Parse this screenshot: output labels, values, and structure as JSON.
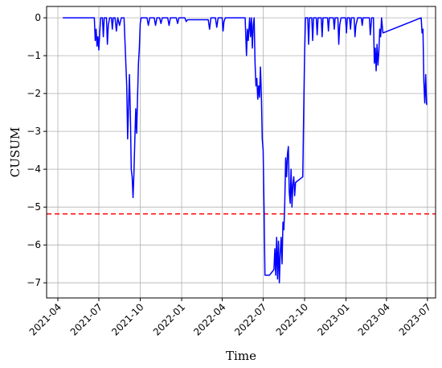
{
  "chart_data": {
    "type": "line",
    "title": "",
    "xlabel": "Time",
    "ylabel": "CUSUM",
    "x_ticks": [
      "2021-04",
      "2021-07",
      "2021-10",
      "2022-01",
      "2022-04",
      "2022-07",
      "2022-10",
      "2023-01",
      "2023-04",
      "2023-07"
    ],
    "y_ticks": [
      0,
      -1,
      -2,
      -3,
      -4,
      -5,
      -6,
      -7
    ],
    "xlim": [
      "2021-03-07",
      "2023-07-19"
    ],
    "ylim": [
      -7.4,
      0.3
    ],
    "grid": true,
    "threshold": {
      "value": -5.18,
      "color": "#ff0000",
      "style": "dashed"
    },
    "series": [
      {
        "color": "#0000ff",
        "points": [
          [
            "2021-04-12",
            0
          ],
          [
            "2021-06-21",
            0
          ],
          [
            "2021-06-23",
            -0.6
          ],
          [
            "2021-06-25",
            -0.3
          ],
          [
            "2021-06-27",
            -0.75
          ],
          [
            "2021-06-29",
            -0.5
          ],
          [
            "2021-07-01",
            -0.85
          ],
          [
            "2021-07-03",
            -0.4
          ],
          [
            "2021-07-05",
            0
          ],
          [
            "2021-07-09",
            0
          ],
          [
            "2021-07-11",
            -0.5
          ],
          [
            "2021-07-13",
            0
          ],
          [
            "2021-07-18",
            0
          ],
          [
            "2021-07-20",
            -0.7
          ],
          [
            "2021-07-22",
            -0.2
          ],
          [
            "2021-07-25",
            0
          ],
          [
            "2021-07-29",
            0
          ],
          [
            "2021-07-31",
            -0.3
          ],
          [
            "2021-08-02",
            0
          ],
          [
            "2021-08-06",
            0
          ],
          [
            "2021-08-09",
            -0.35
          ],
          [
            "2021-08-12",
            0
          ],
          [
            "2021-08-16",
            -0.2
          ],
          [
            "2021-08-20",
            0
          ],
          [
            "2021-08-26",
            0
          ],
          [
            "2021-08-29",
            -0.9
          ],
          [
            "2021-09-01",
            -1.8
          ],
          [
            "2021-09-03",
            -3.2
          ],
          [
            "2021-09-05",
            -2.4
          ],
          [
            "2021-09-07",
            -1.5
          ],
          [
            "2021-09-09",
            -2.5
          ],
          [
            "2021-09-11",
            -4.0
          ],
          [
            "2021-09-13",
            -4.2
          ],
          [
            "2021-09-15",
            -4.75
          ],
          [
            "2021-09-17",
            -4.1
          ],
          [
            "2021-09-19",
            -3.2
          ],
          [
            "2021-09-21",
            -2.4
          ],
          [
            "2021-09-23",
            -3.05
          ],
          [
            "2021-09-25",
            -2.1
          ],
          [
            "2021-09-27",
            -1.2
          ],
          [
            "2021-09-29",
            -0.8
          ],
          [
            "2021-10-01",
            -0.15
          ],
          [
            "2021-10-03",
            0
          ],
          [
            "2021-10-16",
            0
          ],
          [
            "2021-10-19",
            -0.2
          ],
          [
            "2021-10-22",
            0
          ],
          [
            "2021-11-01",
            0
          ],
          [
            "2021-11-04",
            -0.2
          ],
          [
            "2021-11-07",
            0
          ],
          [
            "2021-11-13",
            0
          ],
          [
            "2021-11-16",
            -0.15
          ],
          [
            "2021-11-19",
            0
          ],
          [
            "2021-12-01",
            0
          ],
          [
            "2021-12-04",
            -0.2
          ],
          [
            "2021-12-07",
            0
          ],
          [
            "2021-12-20",
            0
          ],
          [
            "2021-12-23",
            -0.15
          ],
          [
            "2021-12-26",
            0
          ],
          [
            "2022-01-08",
            0
          ],
          [
            "2022-01-11",
            -0.1
          ],
          [
            "2022-01-14",
            -0.05
          ],
          [
            "2022-03-01",
            -0.05
          ],
          [
            "2022-03-04",
            -0.3
          ],
          [
            "2022-03-07",
            0
          ],
          [
            "2022-03-17",
            0
          ],
          [
            "2022-03-20",
            -0.25
          ],
          [
            "2022-03-23",
            0
          ],
          [
            "2022-04-01",
            0
          ],
          [
            "2022-04-03",
            -0.35
          ],
          [
            "2022-04-05",
            -0.1
          ],
          [
            "2022-04-08",
            0
          ],
          [
            "2022-05-22",
            0
          ],
          [
            "2022-05-25",
            -1.0
          ],
          [
            "2022-05-27",
            -0.3
          ],
          [
            "2022-05-29",
            -0.6
          ],
          [
            "2022-06-01",
            0
          ],
          [
            "2022-06-03",
            -0.5
          ],
          [
            "2022-06-05",
            0
          ],
          [
            "2022-06-07",
            -0.8
          ],
          [
            "2022-06-09",
            -0.2
          ],
          [
            "2022-06-11",
            0
          ],
          [
            "2022-06-13",
            -1.2
          ],
          [
            "2022-06-15",
            -1.8
          ],
          [
            "2022-06-17",
            -1.6
          ],
          [
            "2022-06-19",
            -2.15
          ],
          [
            "2022-06-21",
            -1.8
          ],
          [
            "2022-06-23",
            -2.1
          ],
          [
            "2022-06-25",
            -1.3
          ],
          [
            "2022-06-27",
            -2.0
          ],
          [
            "2022-06-29",
            -3.2
          ],
          [
            "2022-07-01",
            -3.5
          ],
          [
            "2022-07-03",
            -5.0
          ],
          [
            "2022-07-05",
            -6.8
          ],
          [
            "2022-07-15",
            -6.8
          ],
          [
            "2022-07-25",
            -6.65
          ],
          [
            "2022-07-27",
            -6.1
          ],
          [
            "2022-07-29",
            -6.8
          ],
          [
            "2022-07-31",
            -5.8
          ],
          [
            "2022-08-02",
            -6.9
          ],
          [
            "2022-08-04",
            -5.9
          ],
          [
            "2022-08-06",
            -7.0
          ],
          [
            "2022-08-08",
            -6.2
          ],
          [
            "2022-08-10",
            -5.8
          ],
          [
            "2022-08-12",
            -6.5
          ],
          [
            "2022-08-14",
            -5.4
          ],
          [
            "2022-08-16",
            -5.6
          ],
          [
            "2022-08-18",
            -4.9
          ],
          [
            "2022-08-20",
            -3.7
          ],
          [
            "2022-08-22",
            -4.2
          ],
          [
            "2022-08-24",
            -3.6
          ],
          [
            "2022-08-26",
            -3.4
          ],
          [
            "2022-08-28",
            -4.6
          ],
          [
            "2022-08-30",
            -4.9
          ],
          [
            "2022-09-01",
            -4.0
          ],
          [
            "2022-09-03",
            -5.0
          ],
          [
            "2022-09-05",
            -4.4
          ],
          [
            "2022-09-07",
            -4.2
          ],
          [
            "2022-09-09",
            -4.7
          ],
          [
            "2022-09-11",
            -4.35
          ],
          [
            "2022-09-27",
            -4.2
          ],
          [
            "2022-09-29",
            -2.5
          ],
          [
            "2022-10-01",
            -1.0
          ],
          [
            "2022-10-03",
            0
          ],
          [
            "2022-10-08",
            0
          ],
          [
            "2022-10-10",
            -0.7
          ],
          [
            "2022-10-12",
            0
          ],
          [
            "2022-10-17",
            0
          ],
          [
            "2022-10-19",
            -0.6
          ],
          [
            "2022-10-21",
            0
          ],
          [
            "2022-10-27",
            0
          ],
          [
            "2022-10-29",
            -0.45
          ],
          [
            "2022-10-31",
            0
          ],
          [
            "2022-11-07",
            0
          ],
          [
            "2022-11-09",
            -0.5
          ],
          [
            "2022-11-11",
            0
          ],
          [
            "2022-11-21",
            0
          ],
          [
            "2022-11-23",
            -0.35
          ],
          [
            "2022-11-25",
            0
          ],
          [
            "2022-12-04",
            0
          ],
          [
            "2022-12-06",
            -0.3
          ],
          [
            "2022-12-08",
            0
          ],
          [
            "2022-12-14",
            0
          ],
          [
            "2022-12-16",
            -0.7
          ],
          [
            "2022-12-18",
            -0.2
          ],
          [
            "2022-12-21",
            0
          ],
          [
            "2022-12-31",
            0
          ],
          [
            "2023-01-02",
            -0.4
          ],
          [
            "2023-01-04",
            0
          ],
          [
            "2023-01-09",
            0
          ],
          [
            "2023-01-11",
            -0.3
          ],
          [
            "2023-01-13",
            0
          ],
          [
            "2023-01-19",
            0
          ],
          [
            "2023-01-21",
            -0.5
          ],
          [
            "2023-01-23",
            -0.2
          ],
          [
            "2023-01-27",
            0
          ],
          [
            "2023-02-04",
            0
          ],
          [
            "2023-02-06",
            -0.2
          ],
          [
            "2023-02-08",
            0
          ],
          [
            "2023-02-22",
            0
          ],
          [
            "2023-02-24",
            -0.45
          ],
          [
            "2023-02-27",
            0
          ],
          [
            "2023-03-03",
            0
          ],
          [
            "2023-03-05",
            -1.2
          ],
          [
            "2023-03-07",
            -0.8
          ],
          [
            "2023-03-09",
            -1.4
          ],
          [
            "2023-03-11",
            -0.7
          ],
          [
            "2023-03-13",
            -1.25
          ],
          [
            "2023-03-15",
            -0.9
          ],
          [
            "2023-03-17",
            -0.3
          ],
          [
            "2023-03-19",
            -0.5
          ],
          [
            "2023-03-21",
            0
          ],
          [
            "2023-03-24",
            -0.4
          ],
          [
            "2023-06-17",
            0
          ],
          [
            "2023-06-19",
            -0.4
          ],
          [
            "2023-06-21",
            -0.3
          ],
          [
            "2023-06-23",
            -1.7
          ],
          [
            "2023-06-25",
            -2.25
          ],
          [
            "2023-06-27",
            -1.5
          ],
          [
            "2023-06-29",
            -2.3
          ]
        ]
      }
    ]
  }
}
